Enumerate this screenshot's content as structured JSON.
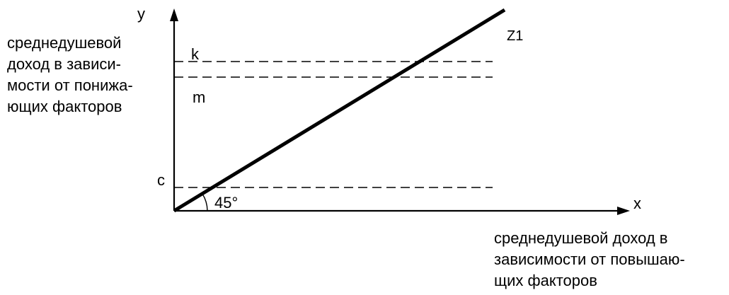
{
  "axes": {
    "y_letter": "y",
    "x_letter": "x",
    "y_label_lines": [
      "среднедушевой",
      "доход в зависи-",
      "мости от понижа-",
      "ющих факторов"
    ],
    "x_label_lines": [
      "среднедушевой доход в",
      "зависимости от повышаю-",
      "щих факторов"
    ]
  },
  "levels": {
    "k": "k",
    "m": "m",
    "c": "c"
  },
  "line_label": "Z1",
  "angle_label": "45°"
}
